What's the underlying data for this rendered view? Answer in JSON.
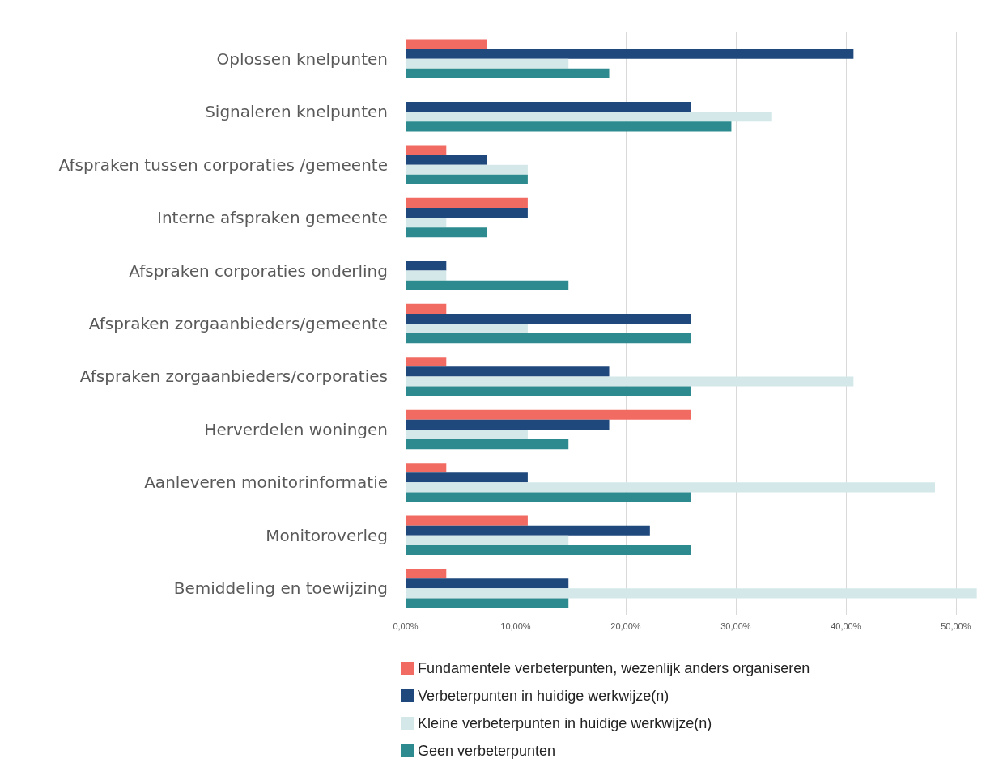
{
  "chart_data": {
    "type": "bar",
    "orientation": "horizontal",
    "categories": [
      "Oplossen knelpunten",
      "Signaleren knelpunten",
      "Afspraken tussen corporaties /gemeente",
      "Interne afspraken gemeente",
      "Afspraken corporaties onderling",
      "Afspraken zorgaanbieders/gemeente",
      "Afspraken zorgaanbieders/corporaties",
      "Herverdelen woningen",
      "Aanleveren monitorinformatie",
      "Monitoroverleg",
      "Bemiddeling en toewijzing"
    ],
    "series": [
      {
        "name": "Fundamentele verbeterpunten, wezenlijk anders organiseren",
        "color": "#f26b63",
        "values": [
          7.4,
          0,
          3.7,
          11.1,
          0,
          3.7,
          3.7,
          25.9,
          3.7,
          11.1,
          3.7
        ]
      },
      {
        "name": "Verbeterpunten in huidige werkwijze(n)",
        "color": "#1f497d",
        "values": [
          40.7,
          25.9,
          7.4,
          11.1,
          3.7,
          25.9,
          18.5,
          18.5,
          11.1,
          22.2,
          14.8
        ]
      },
      {
        "name": "Kleine verbeterpunten in huidige werkwijze(n)",
        "color": "#d4e8e9",
        "values": [
          14.8,
          33.3,
          11.1,
          3.7,
          3.7,
          11.1,
          40.7,
          11.1,
          48.1,
          14.8,
          51.9
        ]
      },
      {
        "name": "Geen verbeterpunten",
        "color": "#2d8b8f",
        "values": [
          18.5,
          29.6,
          11.1,
          7.4,
          14.8,
          25.9,
          25.9,
          14.8,
          25.9,
          25.9,
          14.8
        ]
      }
    ],
    "xlim": [
      0,
      52
    ],
    "xticks": [
      {
        "value": 0,
        "label": "0,00%"
      },
      {
        "value": 10,
        "label": "10,00%"
      },
      {
        "value": 20,
        "label": "20,00%"
      },
      {
        "value": 30,
        "label": "30,00%"
      },
      {
        "value": 40,
        "label": "40,00%"
      },
      {
        "value": 50,
        "label": "50,00%"
      }
    ],
    "grid": "x",
    "legend": "bottom"
  }
}
